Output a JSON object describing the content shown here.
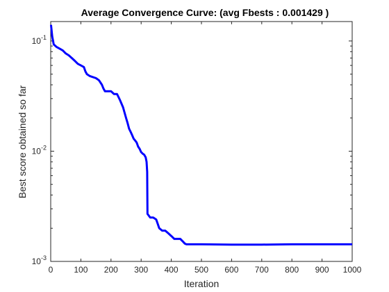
{
  "chart_data": {
    "type": "line",
    "title": "Average Convergence Curve: (avg Fbests : 0.001429 )",
    "xlabel": "Iteration",
    "ylabel": "Best score obtained so far",
    "xlim": [
      0,
      1000
    ],
    "ylim": [
      0.001,
      0.15
    ],
    "yscale": "log",
    "grid": false,
    "x_ticks": [
      0,
      100,
      200,
      300,
      400,
      500,
      600,
      700,
      800,
      900,
      1000
    ],
    "y_ticks": [
      0.001,
      0.01,
      0.1
    ],
    "y_tick_labels": [
      {
        "base": "10",
        "exp": "-3"
      },
      {
        "base": "10",
        "exp": "-2"
      },
      {
        "base": "10",
        "exp": "-1"
      }
    ],
    "series": [
      {
        "color": "#0000ff",
        "x": [
          1,
          5,
          10,
          20,
          30,
          40,
          50,
          60,
          70,
          80,
          90,
          100,
          110,
          115,
          120,
          130,
          150,
          160,
          170,
          175,
          180,
          200,
          210,
          220,
          230,
          240,
          250,
          255,
          260,
          265,
          270,
          275,
          280,
          285,
          290,
          295,
          300,
          305,
          310,
          315,
          318,
          320,
          321,
          330,
          340,
          350,
          360,
          370,
          380,
          390,
          400,
          410,
          420,
          430,
          440,
          445,
          450,
          500,
          600,
          700,
          800,
          900,
          1000
        ],
        "y": [
          0.14,
          0.11,
          0.093,
          0.088,
          0.085,
          0.082,
          0.077,
          0.074,
          0.07,
          0.066,
          0.062,
          0.06,
          0.058,
          0.053,
          0.05,
          0.048,
          0.046,
          0.044,
          0.04,
          0.037,
          0.035,
          0.035,
          0.033,
          0.033,
          0.029,
          0.025,
          0.02,
          0.018,
          0.016,
          0.015,
          0.014,
          0.013,
          0.0125,
          0.012,
          0.011,
          0.0105,
          0.0098,
          0.0095,
          0.0093,
          0.0088,
          0.008,
          0.0065,
          0.0027,
          0.0025,
          0.0025,
          0.0024,
          0.002,
          0.0019,
          0.0019,
          0.0018,
          0.0017,
          0.0016,
          0.0016,
          0.0016,
          0.0015,
          0.00145,
          0.00143,
          0.00143,
          0.00142,
          0.00142,
          0.001429,
          0.001429,
          0.001429
        ]
      }
    ]
  }
}
